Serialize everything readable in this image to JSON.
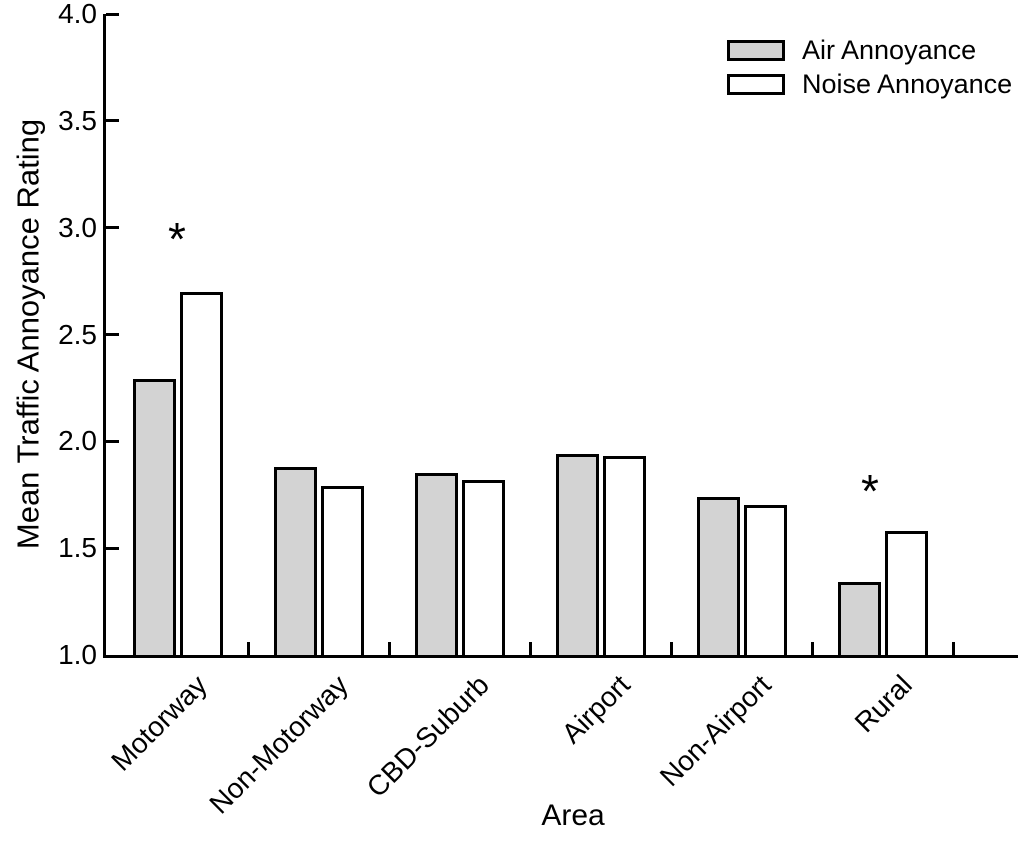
{
  "chart_data": {
    "type": "bar",
    "title": "",
    "xlabel": "Area",
    "ylabel": "Mean Traffic Annoyance Rating",
    "categories": [
      "Motorway",
      "Non-Motorway",
      "CBD-Suburb",
      "Airport",
      "Non-Airport",
      "Rural"
    ],
    "series": [
      {
        "name": "Air Annoyance",
        "color": "#d3d3d3",
        "values": [
          2.29,
          1.88,
          1.85,
          1.94,
          1.74,
          1.34
        ]
      },
      {
        "name": "Noise Annoyance",
        "color": "#ffffff",
        "values": [
          2.7,
          1.79,
          1.82,
          1.93,
          1.7,
          1.58
        ]
      }
    ],
    "ylim": [
      1.0,
      4.0
    ],
    "yticks": [
      1.0,
      1.5,
      2.0,
      2.5,
      3.0,
      3.5,
      4.0
    ],
    "ytick_labels": [
      "1.0",
      "1.5",
      "2.0",
      "2.5",
      "3.0",
      "3.5",
      "4.0"
    ],
    "grid": false,
    "legend_position": "top-right",
    "annotations": [
      {
        "category_index": 0,
        "symbol": "*",
        "y_value": 2.97,
        "dx": 2
      },
      {
        "category_index": 5,
        "symbol": "*",
        "y_value": 1.79,
        "dx": -10
      }
    ]
  }
}
